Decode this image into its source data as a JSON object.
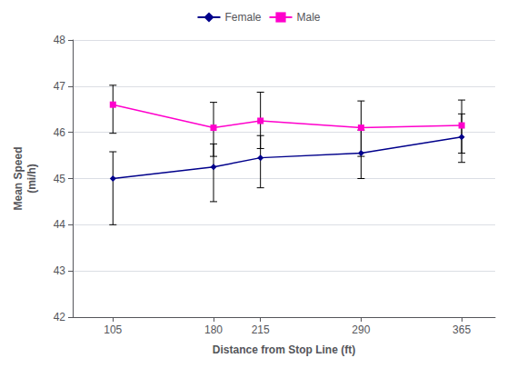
{
  "chart_data": {
    "type": "line",
    "xlabel": "Distance from Stop Line (ft)",
    "ylabel": "Mean Speed\n(mi/h)",
    "x": [
      105,
      180,
      215,
      290,
      365
    ],
    "series": [
      {
        "name": "Female",
        "color": "#00008B",
        "marker": "diamond",
        "values": [
          45.0,
          45.25,
          45.45,
          45.55,
          45.9
        ],
        "err_lo": [
          1.0,
          0.75,
          0.65,
          0.55,
          0.55
        ],
        "err_hi": [
          0.58,
          0.5,
          0.48,
          0.5,
          0.5
        ]
      },
      {
        "name": "Male",
        "color": "#FF00CC",
        "marker": "square",
        "values": [
          46.6,
          46.1,
          46.25,
          46.1,
          46.15
        ],
        "err_lo": [
          0.62,
          0.62,
          0.6,
          0.62,
          0.6
        ],
        "err_hi": [
          0.42,
          0.55,
          0.62,
          0.58,
          0.55
        ]
      }
    ],
    "xlim": [
      75,
      390
    ],
    "xticks": [
      105,
      180,
      215,
      290,
      365
    ],
    "ylim": [
      42,
      48
    ],
    "yticks": [
      42,
      43,
      44,
      45,
      46,
      47,
      48
    ],
    "grid": true,
    "legend": "top"
  }
}
